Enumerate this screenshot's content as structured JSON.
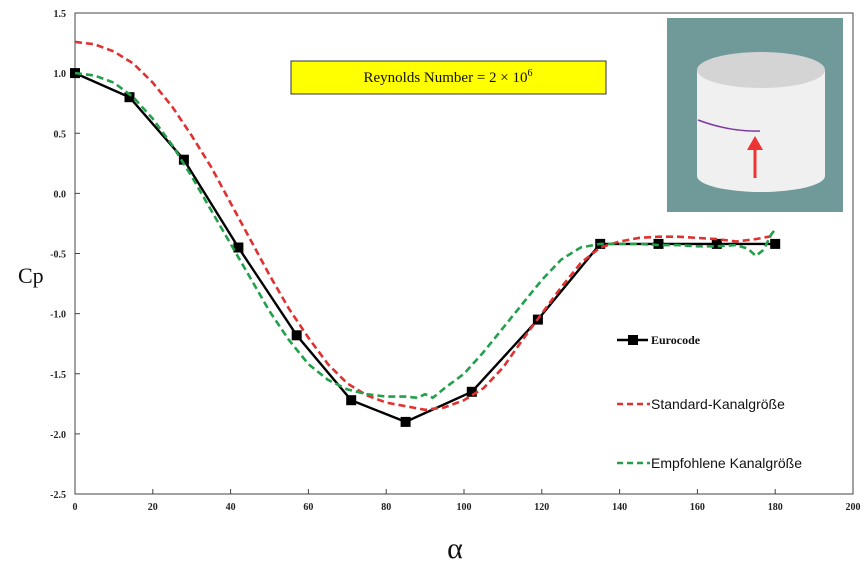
{
  "chart_data": {
    "type": "line",
    "xlabel": "α",
    "ylabel": "Cp",
    "xlim": [
      0,
      200
    ],
    "ylim": [
      -2.5,
      1.5
    ],
    "x_ticks": [
      "0",
      "20",
      "40",
      "60",
      "80",
      "100",
      "120",
      "140",
      "160",
      "180",
      "200"
    ],
    "y_ticks": [
      "1.5",
      "1.0",
      "0.5",
      "0.0",
      "-0.5",
      "-1.0",
      "-1.5",
      "-2.0",
      "-2.5"
    ],
    "x_tick_values": [
      0,
      20,
      40,
      60,
      80,
      100,
      120,
      140,
      160,
      180,
      200
    ],
    "y_tick_values": [
      1.5,
      1.0,
      0.5,
      0.0,
      -0.5,
      -1.0,
      -1.5,
      -2.0,
      -2.5
    ],
    "annotation": "Reynolds Number = ",
    "annotation_math": "2 × 10",
    "annotation_exp": "6",
    "legend_position": "right",
    "series": [
      {
        "name": "Eurocode",
        "color": "#000000",
        "style": "solid",
        "marker": "square",
        "x": [
          0,
          14,
          28,
          42,
          57,
          71,
          85,
          102,
          119,
          135,
          150,
          165,
          180
        ],
        "y": [
          1.0,
          0.8,
          0.28,
          -0.45,
          -1.18,
          -1.72,
          -1.9,
          -1.65,
          -1.05,
          -0.42,
          -0.42,
          -0.42,
          -0.42
        ]
      },
      {
        "name": "Standard-Kanalgröße",
        "color": "#e03030",
        "style": "dashed",
        "marker": "none",
        "x": [
          0,
          5,
          10,
          15,
          20,
          25,
          30,
          35,
          40,
          45,
          50,
          55,
          60,
          65,
          70,
          75,
          80,
          85,
          90,
          95,
          100,
          105,
          110,
          115,
          120,
          125,
          130,
          135,
          140,
          145,
          150,
          155,
          160,
          165,
          170,
          175,
          180
        ],
        "y": [
          1.26,
          1.24,
          1.18,
          1.08,
          0.92,
          0.72,
          0.48,
          0.22,
          -0.08,
          -0.38,
          -0.68,
          -0.96,
          -1.2,
          -1.42,
          -1.58,
          -1.68,
          -1.74,
          -1.77,
          -1.8,
          -1.78,
          -1.72,
          -1.62,
          -1.45,
          -1.22,
          -1.0,
          -0.78,
          -0.58,
          -0.45,
          -0.4,
          -0.37,
          -0.36,
          -0.36,
          -0.37,
          -0.38,
          -0.4,
          -0.38,
          -0.35
        ]
      },
      {
        "name": "Empfohlene Kanalgröße",
        "color": "#22a04b",
        "style": "dashed",
        "marker": "none",
        "x": [
          0,
          5,
          10,
          15,
          20,
          25,
          30,
          35,
          40,
          45,
          50,
          55,
          60,
          65,
          70,
          75,
          80,
          85,
          88,
          90,
          92,
          95,
          100,
          105,
          110,
          115,
          120,
          125,
          130,
          135,
          140,
          145,
          150,
          155,
          160,
          165,
          170,
          173,
          175,
          177,
          179,
          180
        ],
        "y": [
          1.0,
          0.98,
          0.92,
          0.8,
          0.62,
          0.4,
          0.14,
          -0.14,
          -0.42,
          -0.7,
          -0.98,
          -1.22,
          -1.42,
          -1.55,
          -1.63,
          -1.67,
          -1.69,
          -1.69,
          -1.7,
          -1.67,
          -1.7,
          -1.62,
          -1.5,
          -1.32,
          -1.12,
          -0.92,
          -0.72,
          -0.55,
          -0.45,
          -0.42,
          -0.42,
          -0.42,
          -0.43,
          -0.43,
          -0.44,
          -0.44,
          -0.43,
          -0.46,
          -0.52,
          -0.47,
          -0.34,
          -0.3
        ]
      }
    ]
  },
  "inset": {
    "background": "#6f9a99",
    "description_icons": [
      "cylinder-icon",
      "arrow-up-icon"
    ]
  }
}
